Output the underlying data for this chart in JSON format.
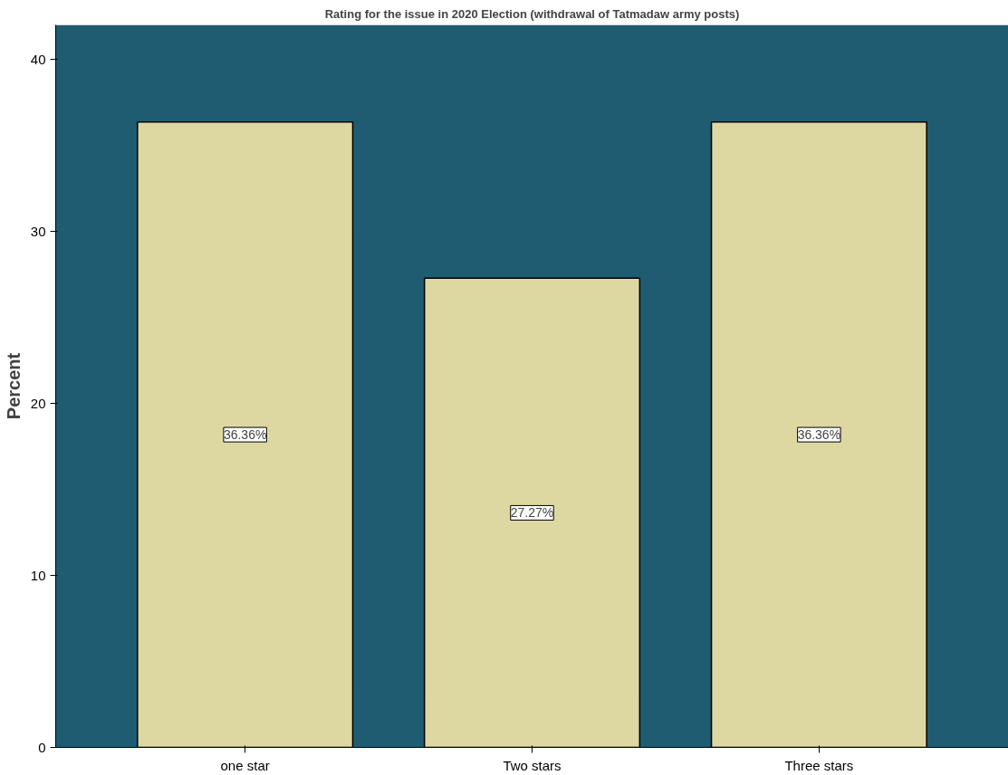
{
  "chart_data": {
    "type": "bar",
    "title": "Rating for the issue in 2020 Election (withdrawal of Tatmadaw army posts)",
    "ylabel": "Percent",
    "categories": [
      "one star",
      "Two stars",
      "Three stars"
    ],
    "values": [
      36.36,
      27.27,
      36.36
    ],
    "color": "#ddd7a2",
    "value_labels": [
      "36.36%",
      "27.27%",
      "36.36%"
    ],
    "bands": [
      {
        "axis": "y",
        "from": 0,
        "to": 42,
        "color": "#1f5c72"
      }
    ],
    "ylim": [
      0,
      42
    ],
    "yticks": [
      0,
      10,
      20,
      30,
      40
    ]
  }
}
